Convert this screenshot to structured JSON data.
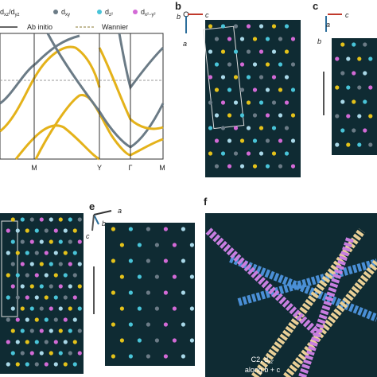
{
  "panel_a": {
    "legend": [
      {
        "text": "d",
        "sub": "xz",
        "text2": "/d",
        "sub2": "yz"
      },
      {
        "text": "d",
        "sub": "xy"
      },
      {
        "text": "d",
        "sub": "z²"
      },
      {
        "text": "d",
        "sub": "x²−y²"
      }
    ],
    "lines": [
      "Ab initio",
      "Wannier"
    ],
    "kpoints": [
      "M",
      "Y",
      "Γ",
      "M"
    ]
  },
  "panel_b": {
    "label": "b",
    "axes": [
      "b",
      "c",
      "a"
    ]
  },
  "panel_c": {
    "label": "c",
    "axes": [
      "c",
      "a",
      "b"
    ]
  },
  "panel_e": {
    "label": "e",
    "axes": [
      "a",
      "b",
      "c"
    ]
  },
  "panel_f": {
    "label": "f",
    "caption1": "C2, d",
    "caption1_sub": "xz'",
    "caption2": "along b + c"
  }
}
